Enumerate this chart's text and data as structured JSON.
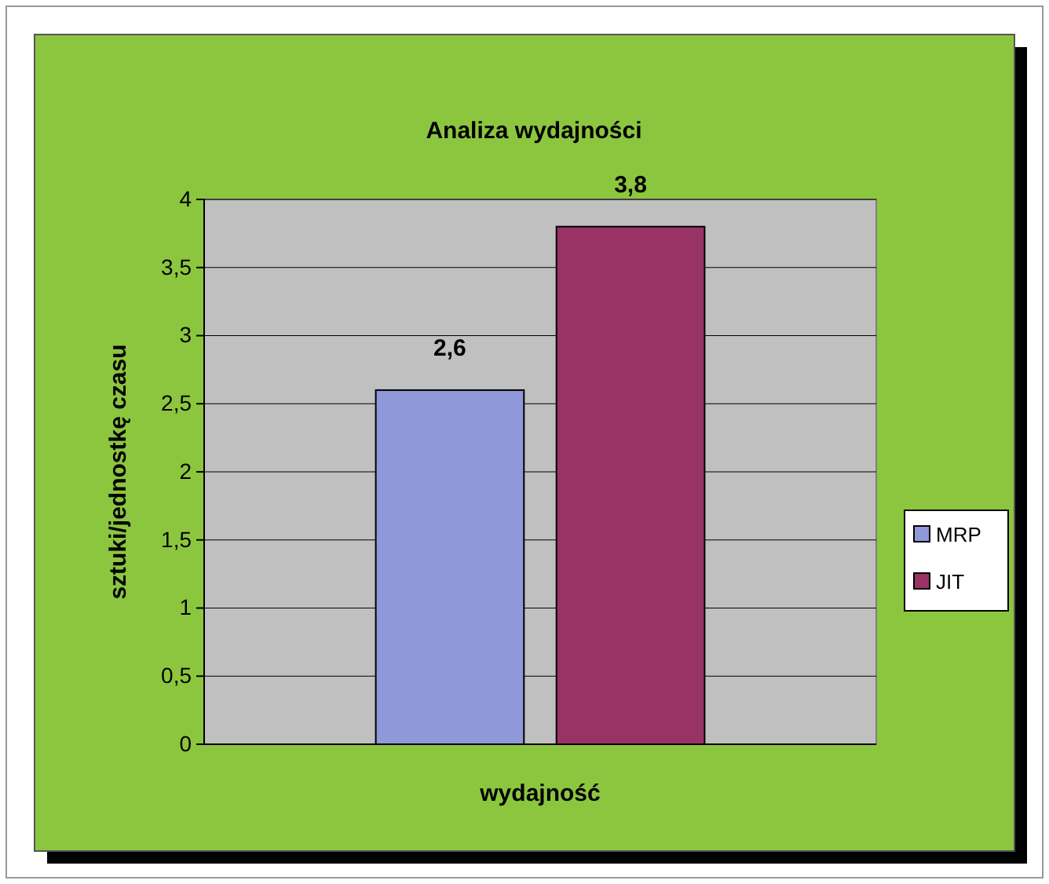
{
  "chart_data": {
    "type": "bar",
    "title": "Analiza wydajności",
    "xlabel": "wydajność",
    "ylabel": "sztuki/jednostkę czasu",
    "categories": [
      null
    ],
    "series": [
      {
        "name": "MRP",
        "color": "#8f98d8",
        "values": [
          2.6
        ],
        "value_labels": [
          "2,6"
        ]
      },
      {
        "name": "JIT",
        "color": "#993366",
        "values": [
          3.8
        ],
        "value_labels": [
          "3,8"
        ]
      }
    ],
    "ylim": [
      0,
      4
    ],
    "yticks": [
      0,
      {
        "value": 0.5,
        "label": "0,5"
      },
      1,
      {
        "value": 1.5,
        "label": "1,5"
      },
      2,
      {
        "value": 2.5,
        "label": "2,5"
      },
      3,
      {
        "value": 3.5,
        "label": "3,5"
      },
      4
    ],
    "grid": "y",
    "legend": "right"
  }
}
